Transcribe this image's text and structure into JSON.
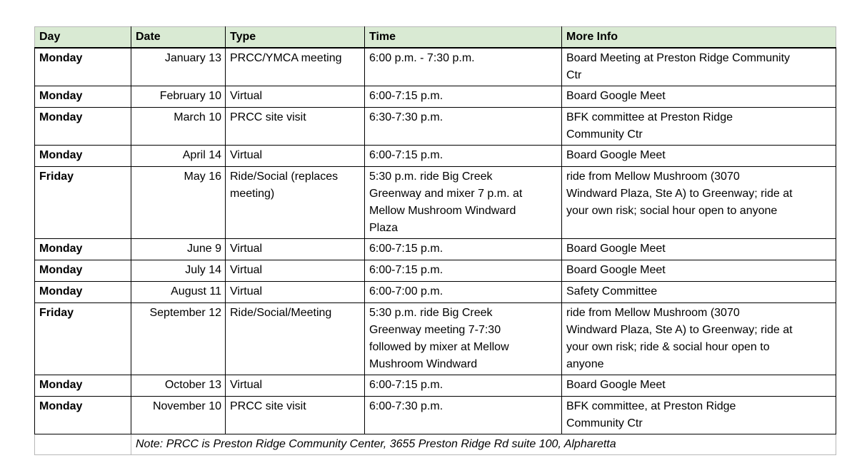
{
  "table": {
    "headers": [
      "Day",
      "Date",
      "Type",
      "Time",
      "More Info"
    ],
    "rows": [
      {
        "day": "Monday",
        "date": "January 13",
        "type": "PRCC/YMCA meeting",
        "time": "6:00 p.m. - 7:30 p.m.",
        "info": "Board Meeting at Preston Ridge Community\nCtr"
      },
      {
        "day": "Monday",
        "date": "February 10",
        "type": "Virtual",
        "time": "6:00-7:15 p.m.",
        "info": "Board Google Meet"
      },
      {
        "day": "Monday",
        "date": "March 10",
        "type": "PRCC site visit",
        "time": "6:30-7:30 p.m.",
        "info": "BFK committee at Preston Ridge\nCommunity Ctr"
      },
      {
        "day": "Monday",
        "date": "April 14",
        "type": "Virtual",
        "time": "6:00-7:15 p.m.",
        "info": "Board Google Meet"
      },
      {
        "day": "Friday",
        "date": "May 16",
        "type": "Ride/Social (replaces\nmeeting)",
        "time": "5:30 p.m. ride Big Creek\nGreenway and mixer 7 p.m. at\nMellow Mushroom Windward\nPlaza",
        "info": "ride from Mellow Mushroom (3070\nWindward Plaza, Ste A) to Greenway; ride at\nyour own risk; social hour open to anyone"
      },
      {
        "day": "Monday",
        "date": "June 9",
        "type": "Virtual",
        "time": "6:00-7:15 p.m.",
        "info": "Board Google Meet"
      },
      {
        "day": "Monday",
        "date": "July 14",
        "type": "Virtual",
        "time": "6:00-7:15 p.m.",
        "info": "Board Google Meet"
      },
      {
        "day": "Monday",
        "date": "August 11",
        "type": "Virtual",
        "time": "6:00-7:00 p.m.",
        "info": "Safety Committee"
      },
      {
        "day": "Friday",
        "date": "September 12",
        "type": "Ride/Social/Meeting",
        "time": "5:30 p.m. ride Big Creek\nGreenway meeting 7-7:30\nfollowed by mixer at Mellow\nMushroom Windward",
        "info": "ride from Mellow Mushroom (3070\nWindward Plaza, Ste A) to Greenway; ride at\nyour own risk; ride & social hour open to\nanyone"
      },
      {
        "day": "Monday",
        "date": "October 13",
        "type": "Virtual",
        "time": "6:00-7:15 p.m.",
        "info": "Board Google Meet"
      },
      {
        "day": "Monday",
        "date": "November 10",
        "type": "PRCC site visit",
        "time": "6:00-7:30 p.m.",
        "info": "BFK committee, at Preston Ridge\nCommunity Ctr"
      }
    ],
    "note": "Note: PRCC is Preston Ridge Community Center, 3655 Preston Ridge Rd suite 100, Alpharetta"
  },
  "colors": {
    "header_bg": "#d9ead3",
    "body_border": "#000000",
    "outer_border": "#b7b7b7",
    "text": "#000000"
  }
}
